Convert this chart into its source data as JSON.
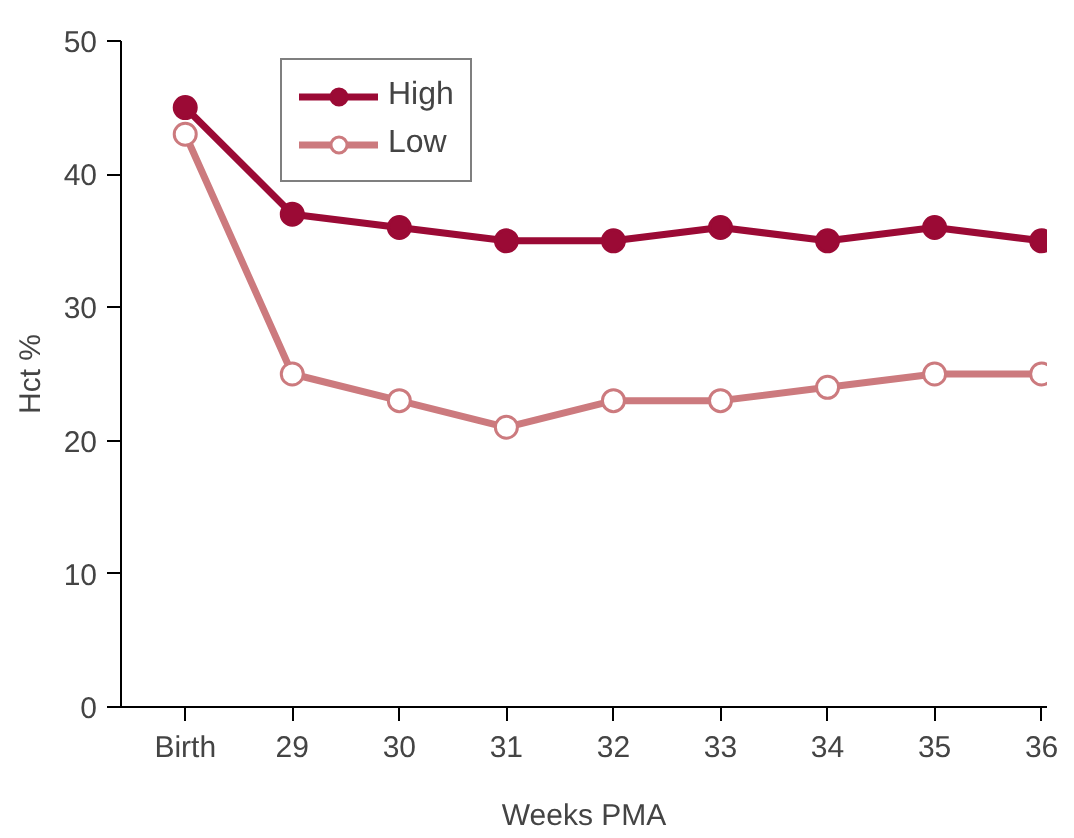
{
  "chart_data": {
    "type": "line",
    "xlabel": "Weeks PMA",
    "ylabel": "Hct %",
    "categories": [
      "Birth",
      "29",
      "30",
      "31",
      "32",
      "33",
      "34",
      "35",
      "36"
    ],
    "series": [
      {
        "name": "High",
        "color": "#9b0a35",
        "values": [
          45,
          37,
          36,
          35,
          35,
          36,
          35,
          36,
          35
        ]
      },
      {
        "name": "Low",
        "color": "#cc7a7e",
        "values": [
          43,
          25,
          23,
          21,
          23,
          23,
          24,
          25,
          25
        ]
      }
    ],
    "ylim": [
      0,
      50
    ],
    "yticks": [
      0,
      10,
      20,
      30,
      40,
      50
    ],
    "grid": false,
    "marker": "circle",
    "legend": "top left",
    "line_style": "solid"
  }
}
